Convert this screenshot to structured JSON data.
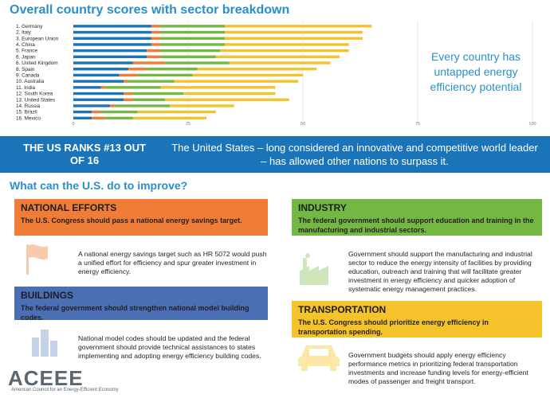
{
  "title": "Overall country scores with sector breakdown",
  "callout": "Every country has untapped energy efficiency potential",
  "band": {
    "rank": "THE US RANKS #13 OUT OF 16",
    "text": "The United States – long considered an innovative and competitive world leader – has allowed other nations to surpass it."
  },
  "subtitle": "What can the U.S. do to improve?",
  "cards": {
    "national": {
      "heading": "NATIONAL EFFORTS",
      "sub": "The U.S. Congress should pass a national energy savings target.",
      "body": "A national energy savings target such as HR 5072 would push a unified effort for efficiency and spur greater investment in energy efficiency.",
      "color": "#f07d37"
    },
    "buildings": {
      "heading": "BUILDINGS",
      "sub": "The federal government should strengthen national model building codes.",
      "body": "National model codes should be updated and the federal government should provide technical assistances to states implementing and adopting energy efficiency building codes.",
      "color": "#4a6fb5"
    },
    "industry": {
      "heading": "INDUSTRY",
      "sub": "The federal government should support education and training in the manufacturing and industrial sectors.",
      "body": "Government should support the manufacturing and industrial sector to reduce the energy intensity of facilities by providing education, outreach and training that will facilitate greater investment in energy efficiency and quicker adoption of systematic energy management practices.",
      "color": "#74b843"
    },
    "transportation": {
      "heading": "TRANSPORTATION",
      "sub": "The U.S. Congress should prioritize energy efficiency in transportation spending.",
      "body": "Government budgets should apply energy efficiency performance metrics in prioritizing federal transportation investments and increase funding levels for energy-efficient modes of passenger and freight transport.",
      "color": "#f4c22b"
    }
  },
  "logo": {
    "name": "ACEEE",
    "sub": "American Council for an Energy-Efficient Economy"
  },
  "chart_data": {
    "type": "bar",
    "stacked": true,
    "orientation": "horizontal",
    "categories": [
      "1. Germany",
      "2. Italy",
      "3. European Union",
      "4. China",
      "5. France",
      "6. Japan",
      "6. United Kingdom",
      "8. Spain",
      "9. Canada",
      "10. Australia",
      "11. India",
      "12. South Korea",
      "13. United States",
      "14. Russia",
      "15. Brazil",
      "16. Mexico"
    ],
    "series": [
      {
        "color": "#1b74b8",
        "values": [
          17,
          17,
          17,
          17,
          16,
          16,
          13,
          12,
          10,
          11,
          6,
          11,
          11,
          8,
          4,
          4
        ]
      },
      {
        "color": "#f07d37",
        "values": [
          2,
          2,
          2,
          2,
          3,
          3,
          7,
          4,
          4,
          1,
          1,
          2,
          2,
          1,
          2,
          3
        ]
      },
      {
        "color": "#74b843",
        "values": [
          14,
          14,
          14,
          14,
          13,
          12,
          14,
          11,
          12,
          10,
          12,
          11,
          7,
          12,
          8,
          6
        ]
      },
      {
        "color": "#f4c22b",
        "values": [
          32,
          30,
          30,
          27,
          28,
          27,
          22,
          26,
          24,
          27,
          25,
          20,
          27,
          14,
          17,
          16
        ]
      }
    ],
    "xlim": [
      0,
      100
    ],
    "xticks": [
      0,
      25,
      50,
      75,
      100
    ]
  }
}
